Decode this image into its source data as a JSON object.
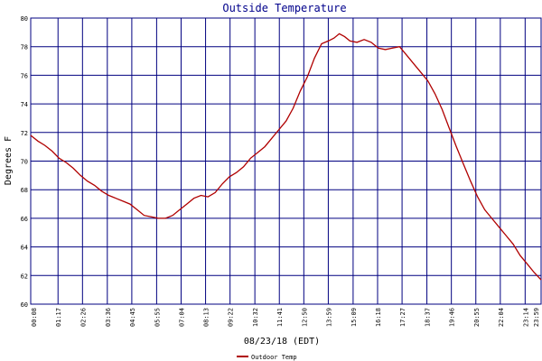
{
  "chart_data": {
    "type": "line",
    "title": "Outside Temperature",
    "xlabel": "08/23/18 (EDT)",
    "ylabel": "Degrees F",
    "ylim": [
      60,
      80
    ],
    "xlim": [
      "00:00",
      "23:59"
    ],
    "grid": true,
    "legend_position": "bottom-left",
    "x_tick_labels": [
      "00:08",
      "01:17",
      "02:26",
      "03:36",
      "04:45",
      "05:55",
      "07:04",
      "08:13",
      "09:22",
      "10:32",
      "11:41",
      "12:50",
      "13:59",
      "15:09",
      "16:18",
      "17:27",
      "18:37",
      "19:46",
      "20:55",
      "22:04",
      "23:14",
      "23:59"
    ],
    "y_tick_labels": [
      "60",
      "62",
      "64",
      "66",
      "68",
      "70",
      "72",
      "74",
      "76",
      "78",
      "80"
    ],
    "series": [
      {
        "name": "Outdoor Temp",
        "color": "#b00000",
        "x": [
          "00:00",
          "00:20",
          "00:40",
          "01:00",
          "01:20",
          "01:40",
          "02:00",
          "02:20",
          "02:40",
          "03:00",
          "03:20",
          "03:40",
          "04:00",
          "04:20",
          "04:40",
          "05:00",
          "05:20",
          "05:40",
          "06:00",
          "06:20",
          "06:40",
          "07:00",
          "07:20",
          "07:40",
          "08:00",
          "08:20",
          "08:40",
          "09:00",
          "09:20",
          "09:40",
          "10:00",
          "10:20",
          "10:40",
          "11:00",
          "11:20",
          "11:40",
          "12:00",
          "12:20",
          "12:40",
          "13:00",
          "13:20",
          "13:40",
          "13:59",
          "14:15",
          "14:30",
          "14:45",
          "15:00",
          "15:20",
          "15:40",
          "16:00",
          "16:20",
          "16:40",
          "17:00",
          "17:20",
          "17:40",
          "18:00",
          "18:20",
          "18:40",
          "19:00",
          "19:20",
          "19:40",
          "20:00",
          "20:20",
          "20:40",
          "21:00",
          "21:20",
          "21:40",
          "22:00",
          "22:20",
          "22:40",
          "23:00",
          "23:20",
          "23:40",
          "23:59"
        ],
        "values": [
          71.8,
          71.4,
          71.1,
          70.7,
          70.2,
          69.9,
          69.5,
          69.0,
          68.6,
          68.3,
          67.9,
          67.6,
          67.4,
          67.2,
          67.0,
          66.6,
          66.2,
          66.1,
          66.0,
          66.0,
          66.2,
          66.6,
          67.0,
          67.4,
          67.6,
          67.5,
          67.8,
          68.4,
          68.9,
          69.2,
          69.6,
          70.2,
          70.6,
          71.0,
          71.6,
          72.2,
          72.8,
          73.7,
          74.9,
          75.9,
          77.2,
          78.2,
          78.4,
          78.6,
          78.9,
          78.7,
          78.4,
          78.3,
          78.5,
          78.3,
          77.9,
          77.8,
          77.9,
          78.0,
          77.4,
          76.8,
          76.2,
          75.6,
          74.7,
          73.6,
          72.3,
          71.0,
          69.8,
          68.6,
          67.5,
          66.6,
          66.0,
          65.4,
          64.8,
          64.2,
          63.4,
          62.8,
          62.2,
          61.7
        ]
      }
    ]
  }
}
